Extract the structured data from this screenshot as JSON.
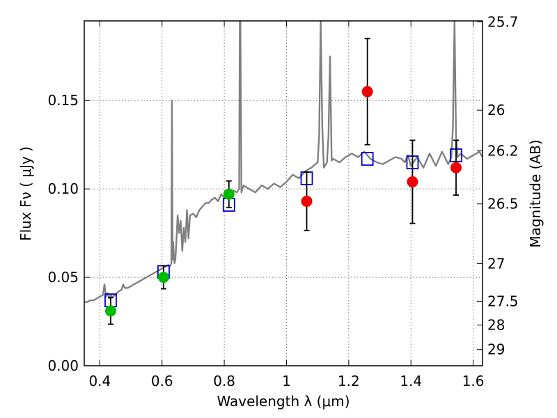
{
  "chart_data": {
    "type": "scatter",
    "xlabel": "Wavelength  λ (μm)",
    "ylabel": "Flux  Fν  ( μJy )",
    "y2label": "Magnitude (AB)",
    "xlim": [
      0.35,
      1.63
    ],
    "ylim": [
      0.0,
      0.195
    ],
    "grid": true,
    "x_ticks": [
      0.4,
      0.6,
      0.8,
      1.0,
      1.2,
      1.4,
      1.6
    ],
    "x_tick_labels": [
      "0.4",
      "0.6",
      "0.8",
      "1",
      "1.2",
      "1.4",
      "1.6"
    ],
    "y_ticks": [
      0.0,
      0.05,
      0.1,
      0.15
    ],
    "y_tick_labels": [
      "0.00",
      "0.05",
      "0.10",
      "0.15"
    ],
    "y2_ticks": [
      {
        "label": "25.7",
        "flux": 0.1945
      },
      {
        "label": "26",
        "flux": 0.1445
      },
      {
        "label": "26.2",
        "flux": 0.1215
      },
      {
        "label": "26.5",
        "flux": 0.0915
      },
      {
        "label": "27",
        "flux": 0.0577
      },
      {
        "label": "27.5",
        "flux": 0.0364
      },
      {
        "label": "28",
        "flux": 0.023
      },
      {
        "label": "29",
        "flux": 0.0092
      }
    ],
    "colors": {
      "model": "#808080",
      "model_points": "#0000cc",
      "green_points": "#00bb00",
      "red_points": "#ee0000",
      "errorbar": "#000000",
      "grid": "#555555"
    },
    "series": [
      {
        "kind": "model-spectrum",
        "x": [
          0.35,
          0.36,
          0.37,
          0.38,
          0.39,
          0.4,
          0.41,
          0.415,
          0.42,
          0.425,
          0.43,
          0.435,
          0.44,
          0.45,
          0.46,
          0.47,
          0.475,
          0.48,
          0.49,
          0.5,
          0.51,
          0.52,
          0.53,
          0.54,
          0.55,
          0.56,
          0.57,
          0.58,
          0.59,
          0.6,
          0.61,
          0.62,
          0.625,
          0.63,
          0.632,
          0.634,
          0.636,
          0.638,
          0.64,
          0.643,
          0.646,
          0.65,
          0.655,
          0.66,
          0.665,
          0.67,
          0.675,
          0.68,
          0.685,
          0.69,
          0.7,
          0.71,
          0.72,
          0.73,
          0.74,
          0.75,
          0.76,
          0.77,
          0.78,
          0.79,
          0.8,
          0.81,
          0.82,
          0.83,
          0.84,
          0.848,
          0.85,
          0.852,
          0.855,
          0.858,
          0.862,
          0.87,
          0.88,
          0.9,
          0.92,
          0.94,
          0.96,
          0.98,
          1.0,
          1.02,
          1.04,
          1.06,
          1.08,
          1.1,
          1.105,
          1.11,
          1.115,
          1.12,
          1.13,
          1.135,
          1.14,
          1.145,
          1.15,
          1.17,
          1.19,
          1.21,
          1.23,
          1.25,
          1.27,
          1.29,
          1.31,
          1.33,
          1.35,
          1.37,
          1.38,
          1.39,
          1.4,
          1.42,
          1.44,
          1.46,
          1.48,
          1.5,
          1.52,
          1.53,
          1.535,
          1.54,
          1.545,
          1.55,
          1.56,
          1.58,
          1.6,
          1.62,
          1.63
        ],
        "y": [
          0.036,
          0.036,
          0.037,
          0.037,
          0.038,
          0.039,
          0.04,
          0.046,
          0.039,
          0.041,
          0.038,
          0.04,
          0.039,
          0.04,
          0.042,
          0.043,
          0.046,
          0.044,
          0.044,
          0.045,
          0.046,
          0.047,
          0.048,
          0.049,
          0.05,
          0.051,
          0.052,
          0.053,
          0.054,
          0.055,
          0.056,
          0.057,
          0.056,
          0.058,
          0.15,
          0.06,
          0.07,
          0.063,
          0.058,
          0.06,
          0.07,
          0.085,
          0.075,
          0.082,
          0.065,
          0.078,
          0.07,
          0.088,
          0.072,
          0.085,
          0.086,
          0.084,
          0.088,
          0.09,
          0.092,
          0.092,
          0.094,
          0.095,
          0.093,
          0.097,
          0.095,
          0.098,
          0.096,
          0.099,
          0.098,
          0.1,
          0.195,
          0.195,
          0.098,
          0.1,
          0.102,
          0.101,
          0.1,
          0.098,
          0.102,
          0.1,
          0.103,
          0.101,
          0.104,
          0.108,
          0.106,
          0.11,
          0.112,
          0.115,
          0.13,
          0.195,
          0.135,
          0.112,
          0.115,
          0.13,
          0.175,
          0.116,
          0.117,
          0.115,
          0.118,
          0.12,
          0.118,
          0.121,
          0.117,
          0.115,
          0.114,
          0.116,
          0.118,
          0.117,
          0.115,
          0.119,
          0.113,
          0.118,
          0.112,
          0.12,
          0.113,
          0.121,
          0.114,
          0.118,
          0.135,
          0.195,
          0.13,
          0.118,
          0.12,
          0.117,
          0.119,
          0.121,
          0.118
        ]
      },
      {
        "kind": "model-bandpass",
        "x": [
          0.435,
          0.605,
          0.815,
          1.065,
          1.26,
          1.405,
          1.545
        ],
        "y": [
          0.037,
          0.053,
          0.091,
          0.106,
          0.117,
          0.115,
          0.119
        ]
      },
      {
        "kind": "observed-green",
        "x": [
          0.435,
          0.605,
          0.815
        ],
        "y": [
          0.031,
          0.05,
          0.097
        ],
        "yerr": [
          0.0075,
          0.0065,
          0.0075
        ]
      },
      {
        "kind": "observed-red",
        "x": [
          1.065,
          1.26,
          1.405,
          1.545
        ],
        "y": [
          0.093,
          0.155,
          0.104,
          0.112
        ],
        "yerr": [
          0.0165,
          0.03,
          0.0235,
          0.0155
        ]
      }
    ]
  }
}
